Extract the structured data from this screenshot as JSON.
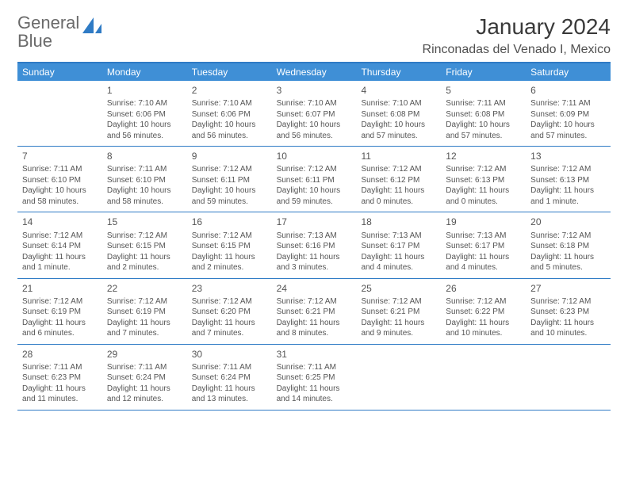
{
  "logo": {
    "text1": "General",
    "text2": "Blue"
  },
  "title": "January 2024",
  "location": "Rinconadas del Venado I, Mexico",
  "colors": {
    "header_bg": "#3f8fd6",
    "border": "#2f7bc5",
    "logo_gray": "#6a6a6a",
    "logo_blue": "#2f7bc5",
    "text": "#555555",
    "title": "#3a3a3a"
  },
  "dow": [
    "Sunday",
    "Monday",
    "Tuesday",
    "Wednesday",
    "Thursday",
    "Friday",
    "Saturday"
  ],
  "weeks": [
    [
      {
        "n": "",
        "l": []
      },
      {
        "n": "1",
        "l": [
          "Sunrise: 7:10 AM",
          "Sunset: 6:06 PM",
          "Daylight: 10 hours",
          "and 56 minutes."
        ]
      },
      {
        "n": "2",
        "l": [
          "Sunrise: 7:10 AM",
          "Sunset: 6:06 PM",
          "Daylight: 10 hours",
          "and 56 minutes."
        ]
      },
      {
        "n": "3",
        "l": [
          "Sunrise: 7:10 AM",
          "Sunset: 6:07 PM",
          "Daylight: 10 hours",
          "and 56 minutes."
        ]
      },
      {
        "n": "4",
        "l": [
          "Sunrise: 7:10 AM",
          "Sunset: 6:08 PM",
          "Daylight: 10 hours",
          "and 57 minutes."
        ]
      },
      {
        "n": "5",
        "l": [
          "Sunrise: 7:11 AM",
          "Sunset: 6:08 PM",
          "Daylight: 10 hours",
          "and 57 minutes."
        ]
      },
      {
        "n": "6",
        "l": [
          "Sunrise: 7:11 AM",
          "Sunset: 6:09 PM",
          "Daylight: 10 hours",
          "and 57 minutes."
        ]
      }
    ],
    [
      {
        "n": "7",
        "l": [
          "Sunrise: 7:11 AM",
          "Sunset: 6:10 PM",
          "Daylight: 10 hours",
          "and 58 minutes."
        ]
      },
      {
        "n": "8",
        "l": [
          "Sunrise: 7:11 AM",
          "Sunset: 6:10 PM",
          "Daylight: 10 hours",
          "and 58 minutes."
        ]
      },
      {
        "n": "9",
        "l": [
          "Sunrise: 7:12 AM",
          "Sunset: 6:11 PM",
          "Daylight: 10 hours",
          "and 59 minutes."
        ]
      },
      {
        "n": "10",
        "l": [
          "Sunrise: 7:12 AM",
          "Sunset: 6:11 PM",
          "Daylight: 10 hours",
          "and 59 minutes."
        ]
      },
      {
        "n": "11",
        "l": [
          "Sunrise: 7:12 AM",
          "Sunset: 6:12 PM",
          "Daylight: 11 hours",
          "and 0 minutes."
        ]
      },
      {
        "n": "12",
        "l": [
          "Sunrise: 7:12 AM",
          "Sunset: 6:13 PM",
          "Daylight: 11 hours",
          "and 0 minutes."
        ]
      },
      {
        "n": "13",
        "l": [
          "Sunrise: 7:12 AM",
          "Sunset: 6:13 PM",
          "Daylight: 11 hours",
          "and 1 minute."
        ]
      }
    ],
    [
      {
        "n": "14",
        "l": [
          "Sunrise: 7:12 AM",
          "Sunset: 6:14 PM",
          "Daylight: 11 hours",
          "and 1 minute."
        ]
      },
      {
        "n": "15",
        "l": [
          "Sunrise: 7:12 AM",
          "Sunset: 6:15 PM",
          "Daylight: 11 hours",
          "and 2 minutes."
        ]
      },
      {
        "n": "16",
        "l": [
          "Sunrise: 7:12 AM",
          "Sunset: 6:15 PM",
          "Daylight: 11 hours",
          "and 2 minutes."
        ]
      },
      {
        "n": "17",
        "l": [
          "Sunrise: 7:13 AM",
          "Sunset: 6:16 PM",
          "Daylight: 11 hours",
          "and 3 minutes."
        ]
      },
      {
        "n": "18",
        "l": [
          "Sunrise: 7:13 AM",
          "Sunset: 6:17 PM",
          "Daylight: 11 hours",
          "and 4 minutes."
        ]
      },
      {
        "n": "19",
        "l": [
          "Sunrise: 7:13 AM",
          "Sunset: 6:17 PM",
          "Daylight: 11 hours",
          "and 4 minutes."
        ]
      },
      {
        "n": "20",
        "l": [
          "Sunrise: 7:12 AM",
          "Sunset: 6:18 PM",
          "Daylight: 11 hours",
          "and 5 minutes."
        ]
      }
    ],
    [
      {
        "n": "21",
        "l": [
          "Sunrise: 7:12 AM",
          "Sunset: 6:19 PM",
          "Daylight: 11 hours",
          "and 6 minutes."
        ]
      },
      {
        "n": "22",
        "l": [
          "Sunrise: 7:12 AM",
          "Sunset: 6:19 PM",
          "Daylight: 11 hours",
          "and 7 minutes."
        ]
      },
      {
        "n": "23",
        "l": [
          "Sunrise: 7:12 AM",
          "Sunset: 6:20 PM",
          "Daylight: 11 hours",
          "and 7 minutes."
        ]
      },
      {
        "n": "24",
        "l": [
          "Sunrise: 7:12 AM",
          "Sunset: 6:21 PM",
          "Daylight: 11 hours",
          "and 8 minutes."
        ]
      },
      {
        "n": "25",
        "l": [
          "Sunrise: 7:12 AM",
          "Sunset: 6:21 PM",
          "Daylight: 11 hours",
          "and 9 minutes."
        ]
      },
      {
        "n": "26",
        "l": [
          "Sunrise: 7:12 AM",
          "Sunset: 6:22 PM",
          "Daylight: 11 hours",
          "and 10 minutes."
        ]
      },
      {
        "n": "27",
        "l": [
          "Sunrise: 7:12 AM",
          "Sunset: 6:23 PM",
          "Daylight: 11 hours",
          "and 10 minutes."
        ]
      }
    ],
    [
      {
        "n": "28",
        "l": [
          "Sunrise: 7:11 AM",
          "Sunset: 6:23 PM",
          "Daylight: 11 hours",
          "and 11 minutes."
        ]
      },
      {
        "n": "29",
        "l": [
          "Sunrise: 7:11 AM",
          "Sunset: 6:24 PM",
          "Daylight: 11 hours",
          "and 12 minutes."
        ]
      },
      {
        "n": "30",
        "l": [
          "Sunrise: 7:11 AM",
          "Sunset: 6:24 PM",
          "Daylight: 11 hours",
          "and 13 minutes."
        ]
      },
      {
        "n": "31",
        "l": [
          "Sunrise: 7:11 AM",
          "Sunset: 6:25 PM",
          "Daylight: 11 hours",
          "and 14 minutes."
        ]
      },
      {
        "n": "",
        "l": []
      },
      {
        "n": "",
        "l": []
      },
      {
        "n": "",
        "l": []
      }
    ]
  ]
}
